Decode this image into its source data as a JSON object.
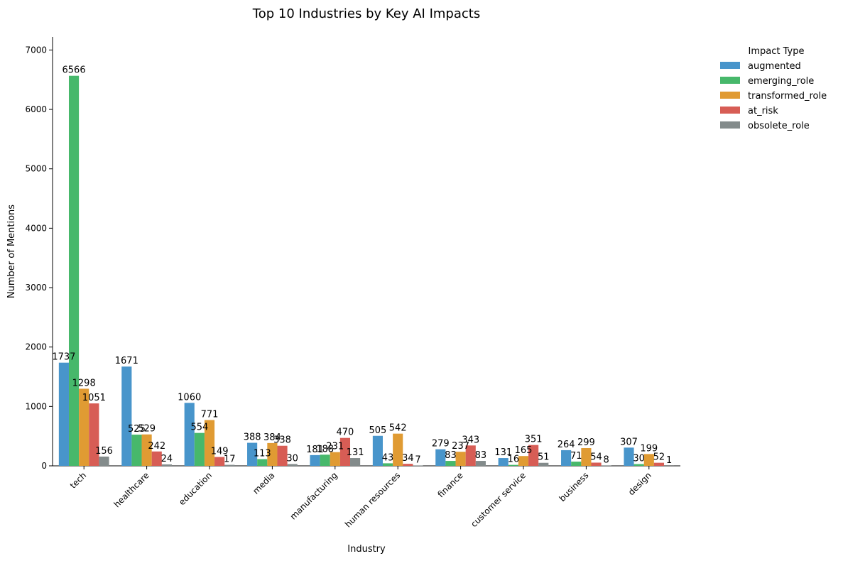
{
  "chart_data": {
    "type": "bar",
    "title": "Top 10 Industries by Key AI Impacts",
    "xlabel": "Industry",
    "ylabel": "Number of Mentions",
    "ylim": [
      0,
      7220
    ],
    "yticks": [
      0,
      1000,
      2000,
      3000,
      4000,
      5000,
      6000,
      7000
    ],
    "grid": false,
    "legend": {
      "title": "Impact Type",
      "placement": "outside-top-right"
    },
    "categories": [
      "tech",
      "healthcare",
      "education",
      "media",
      "manufacturing",
      "human resources",
      "finance",
      "customer service",
      "business",
      "design"
    ],
    "series": [
      {
        "name": "augmented",
        "color": "#4895cb",
        "values": [
          1737,
          1671,
          1060,
          388,
          181,
          505,
          279,
          131,
          264,
          307
        ]
      },
      {
        "name": "emerging_role",
        "color": "#47b86b",
        "values": [
          6566,
          525,
          554,
          113,
          188,
          43,
          83,
          16,
          71,
          30
        ]
      },
      {
        "name": "transformed_role",
        "color": "#e09b33",
        "values": [
          1298,
          529,
          771,
          384,
          231,
          542,
          237,
          165,
          299,
          199
        ]
      },
      {
        "name": "at_risk",
        "color": "#d75d55",
        "values": [
          1051,
          242,
          149,
          338,
          470,
          34,
          343,
          351,
          54,
          52
        ]
      },
      {
        "name": "obsolete_role",
        "color": "#838b8b",
        "values": [
          156,
          24,
          17,
          30,
          131,
          7,
          83,
          51,
          8,
          1
        ]
      }
    ]
  }
}
